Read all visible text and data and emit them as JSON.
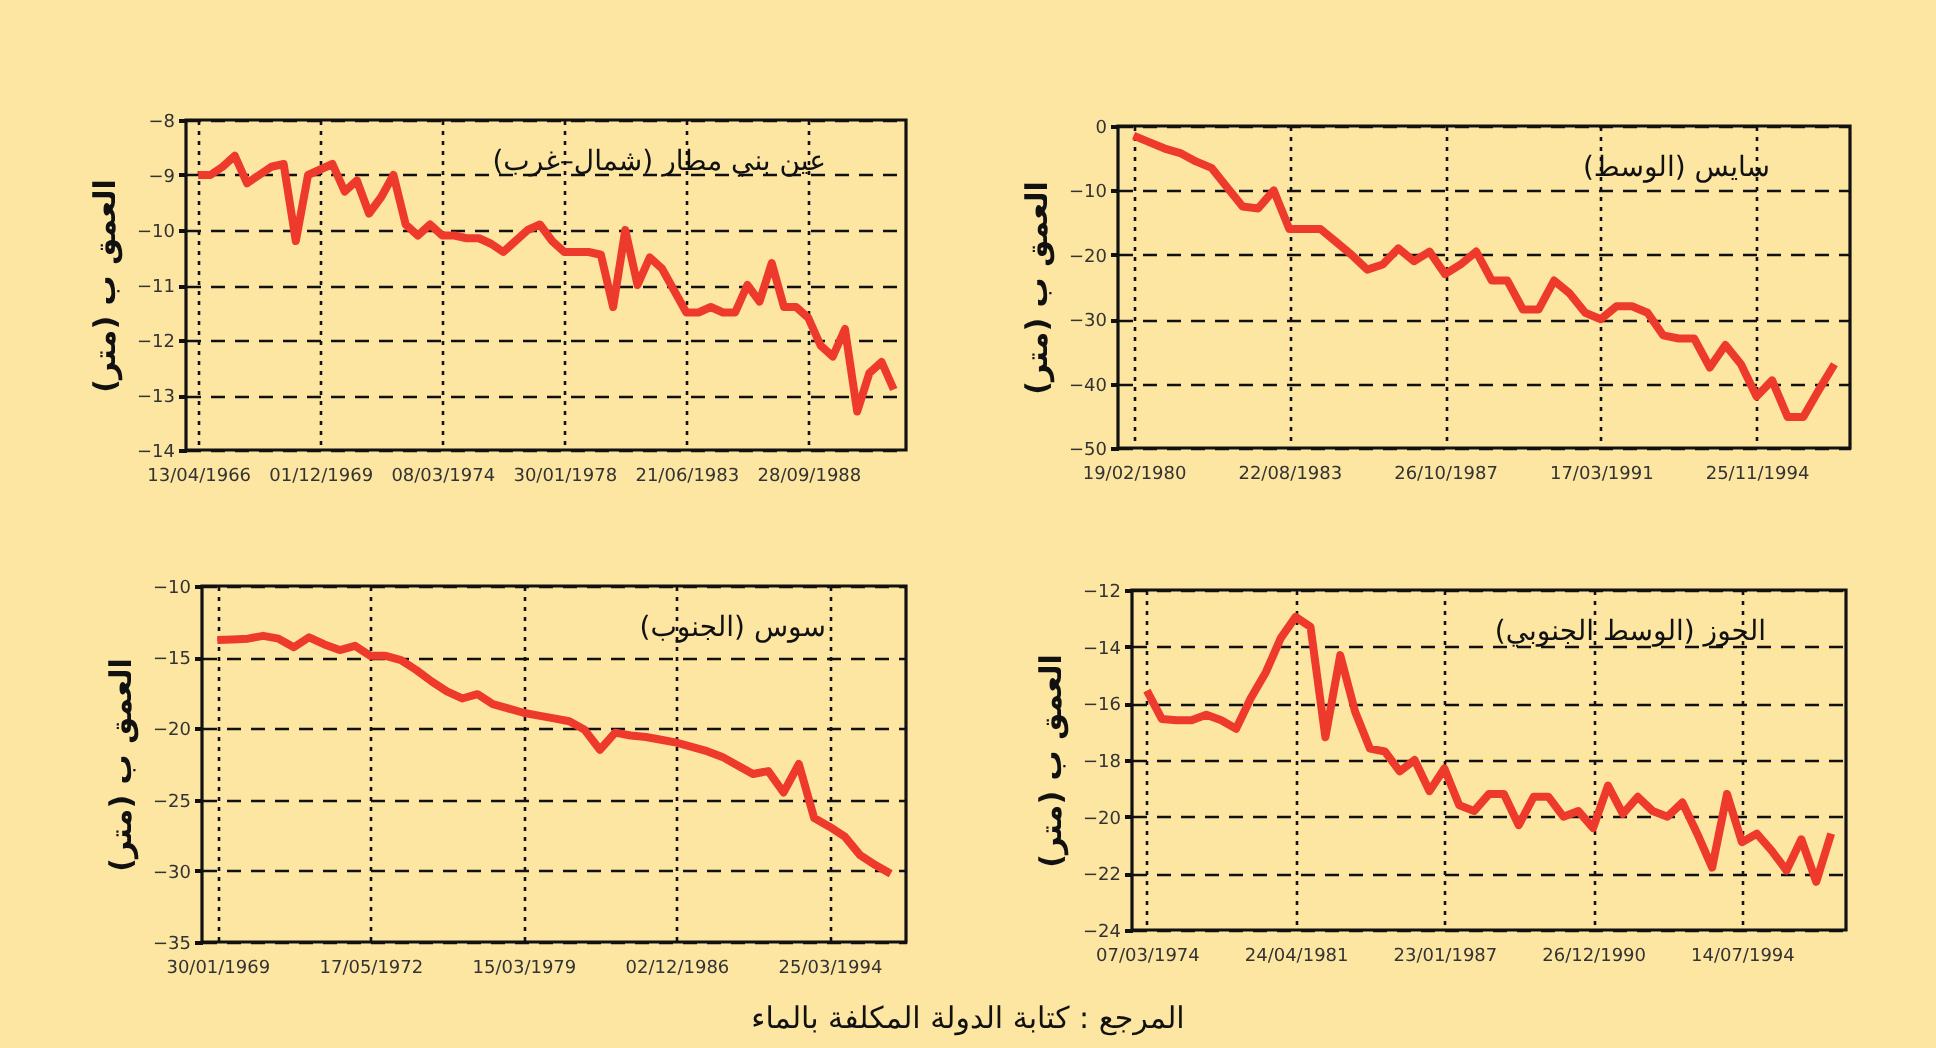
{
  "chart_data": [
    {
      "type": "line",
      "title": "عين بني مطار (شمال–غرب)",
      "ylabel": "العمق ب (متر)",
      "color": "#ee3a2c",
      "grid": true,
      "categories": [
        "13/04/1966",
        null,
        null,
        null,
        null,
        null,
        null,
        null,
        null,
        null,
        "01/12/1969",
        null,
        null,
        null,
        null,
        null,
        null,
        null,
        null,
        null,
        "08/03/1974",
        null,
        null,
        null,
        null,
        null,
        null,
        null,
        null,
        null,
        "30/01/1978",
        null,
        null,
        null,
        null,
        null,
        null,
        null,
        null,
        null,
        "21/06/1983",
        null,
        null,
        null,
        null,
        null,
        null,
        null,
        null,
        null,
        "28/09/1988",
        null,
        null,
        null,
        null,
        null,
        null,
        null
      ],
      "values": [
        -9.0,
        -9.0,
        -8.85,
        -8.65,
        -9.15,
        -9.0,
        -8.85,
        -8.8,
        -10.2,
        -9.0,
        -8.9,
        -8.8,
        -9.3,
        -9.1,
        -9.7,
        -9.4,
        -9.0,
        -9.9,
        -10.1,
        -9.9,
        -10.1,
        -10.1,
        -10.15,
        -10.15,
        -10.25,
        -10.4,
        -10.2,
        -10.0,
        -9.9,
        -10.2,
        -10.4,
        -10.4,
        -10.4,
        -10.45,
        -11.4,
        -10.0,
        -11.0,
        -10.5,
        -10.7,
        -11.1,
        -11.5,
        -11.5,
        -11.4,
        -11.5,
        -11.5,
        -11.0,
        -11.3,
        -10.6,
        -11.4,
        -11.4,
        -11.6,
        -12.1,
        -12.3,
        -11.8,
        -13.3,
        -12.6,
        -12.4,
        -12.9
      ],
      "ylim": [
        -14,
        -8
      ],
      "yticks": [
        -14,
        -13,
        -12,
        -11,
        -10,
        -9,
        -8
      ]
    },
    {
      "type": "line",
      "title": "سايس (الوسط)",
      "ylabel": "العمق ب (متر)",
      "color": "#ee3a2c",
      "grid": true,
      "categories": [
        "19/02/1980",
        null,
        null,
        null,
        null,
        null,
        null,
        null,
        null,
        null,
        "22/08/1983",
        null,
        null,
        null,
        null,
        null,
        null,
        null,
        null,
        null,
        "26/10/1987",
        null,
        null,
        null,
        null,
        null,
        null,
        null,
        null,
        null,
        "17/03/1991",
        null,
        null,
        null,
        null,
        null,
        null,
        null,
        null,
        null,
        "25/11/1994",
        null,
        null,
        null,
        null,
        null
      ],
      "values": [
        -1.5,
        -2.5,
        -3.5,
        -4.2,
        -5.5,
        -6.5,
        -9.5,
        -12.5,
        -12.8,
        -10,
        -16,
        -16,
        -16,
        -18,
        -20,
        -22.3,
        -21.5,
        -19,
        -21,
        -19.5,
        -23,
        -21.5,
        -19.5,
        -24,
        -24,
        -28.5,
        -28.5,
        -24,
        -26,
        -29,
        -30,
        -28,
        -28,
        -29,
        -32.5,
        -33,
        -33,
        -37.5,
        -34,
        -37,
        -42,
        -39.5,
        -45.2,
        -45.2,
        -41,
        -37
      ],
      "ylim": [
        -50,
        0
      ],
      "yticks": [
        -50,
        -40,
        -30,
        -20,
        -10,
        0
      ]
    },
    {
      "type": "line",
      "title": "سوس (الجنوب)",
      "ylabel": "العمق ب (متر)",
      "color": "#ee3a2c",
      "grid": true,
      "categories": [
        "30/01/1969",
        null,
        null,
        null,
        null,
        null,
        null,
        null,
        null,
        null,
        "17/05/1972",
        null,
        null,
        null,
        null,
        null,
        null,
        null,
        null,
        null,
        "15/03/1979",
        null,
        null,
        null,
        null,
        null,
        null,
        null,
        null,
        null,
        "02/12/1986",
        null,
        null,
        null,
        null,
        null,
        null,
        null,
        null,
        null,
        "25/03/1994",
        null,
        null,
        null,
        null
      ],
      "values": [
        -13.8,
        -13.75,
        -13.7,
        -13.5,
        -13.7,
        -14.3,
        -13.6,
        -14.1,
        -14.5,
        -14.2,
        -14.9,
        -14.9,
        -15.2,
        -15.9,
        -16.7,
        -17.4,
        -17.9,
        -17.6,
        -18.3,
        -18.6,
        -18.9,
        -19.1,
        -19.3,
        -19.5,
        -20.1,
        -21.5,
        -20.3,
        -20.5,
        -20.6,
        -20.8,
        -21.0,
        -21.3,
        -21.6,
        -22.0,
        -22.6,
        -23.2,
        -23.0,
        -24.5,
        -22.5,
        -26.3,
        -26.9,
        -27.6,
        -28.9,
        -29.6,
        -30.2
      ],
      "ylim": [
        -35,
        -10
      ],
      "yticks": [
        -35,
        -30,
        -25,
        -20,
        -15,
        -10
      ]
    },
    {
      "type": "line",
      "title": "الحوز (الوسط الجنوبي)",
      "ylabel": "العمق ب (متر)",
      "color": "#ee3a2c",
      "grid": true,
      "categories": [
        "07/03/1974",
        null,
        null,
        null,
        null,
        null,
        null,
        null,
        null,
        null,
        "24/04/1981",
        null,
        null,
        null,
        null,
        null,
        null,
        null,
        null,
        null,
        "23/01/1987",
        null,
        null,
        null,
        null,
        null,
        null,
        null,
        null,
        null,
        "26/12/1990",
        null,
        null,
        null,
        null,
        null,
        null,
        null,
        null,
        null,
        "14/07/1994",
        null,
        null,
        null,
        null,
        null,
        null
      ],
      "values": [
        -15.55,
        -16.55,
        -16.6,
        -16.6,
        -16.4,
        -16.6,
        -16.9,
        -15.8,
        -14.9,
        -13.7,
        -12.95,
        -13.3,
        -17.2,
        -14.3,
        -16.3,
        -17.6,
        -17.7,
        -18.4,
        -18.0,
        -19.1,
        -18.3,
        -19.6,
        -19.8,
        -19.2,
        -19.2,
        -20.3,
        -19.3,
        -19.3,
        -20.0,
        -19.8,
        -20.4,
        -18.9,
        -19.9,
        -19.3,
        -19.8,
        -20.0,
        -19.5,
        -20.6,
        -21.8,
        -19.2,
        -20.9,
        -20.6,
        -21.2,
        -21.9,
        -20.8,
        -22.3,
        -20.6
      ],
      "ylim": [
        -24,
        -12
      ],
      "yticks": [
        -24,
        -22,
        -20,
        -18,
        -16,
        -14,
        -12
      ],
      "annotations": [
        "المرجع : كتابة الدولة المكلفة بالماء"
      ]
    }
  ]
}
